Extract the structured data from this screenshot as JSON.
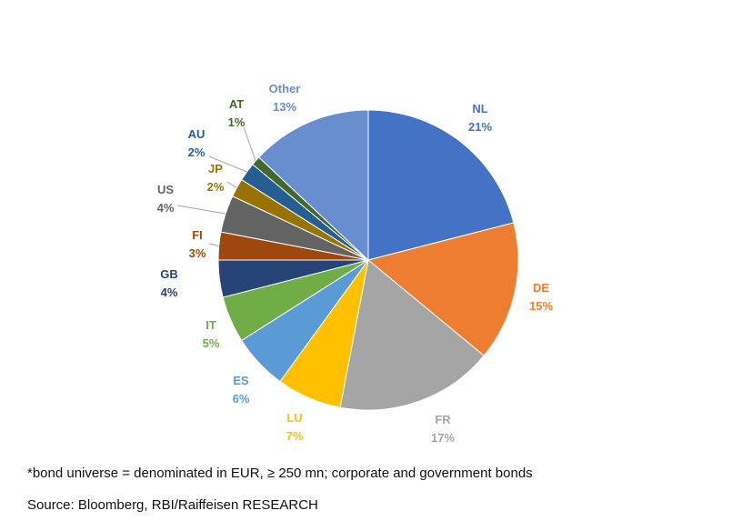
{
  "chart_data": {
    "type": "pie",
    "slices": [
      {
        "label": "NL",
        "value": 21,
        "display": "21%",
        "color": "#4472C4"
      },
      {
        "label": "DE",
        "value": 15,
        "display": "15%",
        "color": "#ED7D31"
      },
      {
        "label": "FR",
        "value": 17,
        "display": "17%",
        "color": "#A5A5A5"
      },
      {
        "label": "LU",
        "value": 7,
        "display": "7%",
        "color": "#FFC000"
      },
      {
        "label": "ES",
        "value": 6,
        "display": "6%",
        "color": "#5B9BD5"
      },
      {
        "label": "IT",
        "value": 5,
        "display": "5%",
        "color": "#70AD47"
      },
      {
        "label": "GB",
        "value": 4,
        "display": "4%",
        "color": "#264478"
      },
      {
        "label": "FI",
        "value": 3,
        "display": "3%",
        "color": "#9E480E"
      },
      {
        "label": "US",
        "value": 4,
        "display": "4%",
        "color": "#636363"
      },
      {
        "label": "JP",
        "value": 2,
        "display": "2%",
        "color": "#997300"
      },
      {
        "label": "AU",
        "value": 2,
        "display": "2%",
        "color": "#255E91"
      },
      {
        "label": "AT",
        "value": 1,
        "display": "1%",
        "color": "#43682B"
      },
      {
        "label": "Other",
        "value": 13,
        "display": "13%",
        "color": "#698ED0"
      }
    ]
  },
  "footnote": "*bond universe = denominated in EUR, ≥ 250 mn; corporate and government bonds",
  "source": "Source: Bloomberg, RBI/Raiffeisen RESEARCH"
}
